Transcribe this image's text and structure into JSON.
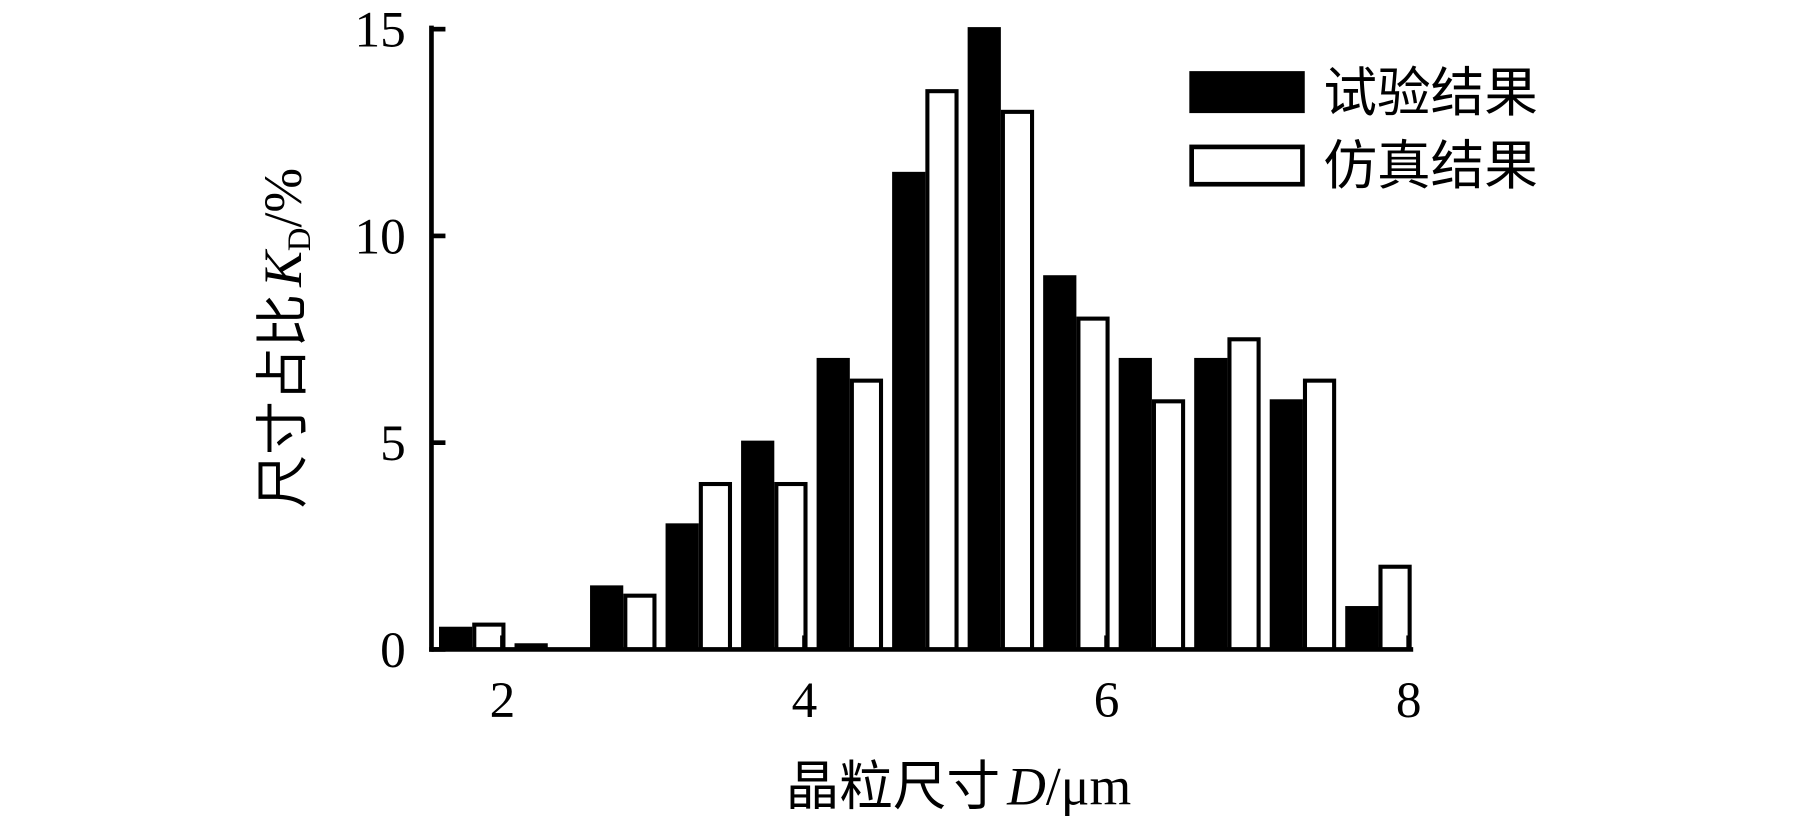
{
  "chart_data": {
    "type": "bar",
    "x": [
      1.8,
      2.3,
      2.8,
      3.3,
      3.8,
      4.3,
      4.8,
      5.3,
      5.8,
      6.3,
      6.8,
      7.3,
      7.8
    ],
    "series": [
      {
        "name": "试验结果",
        "color": "#000000",
        "values": [
          0.5,
          0.1,
          1.5,
          3,
          5,
          7,
          11.5,
          15,
          9,
          7,
          7,
          6,
          1
        ]
      },
      {
        "name": "仿真结果",
        "color": "#ffffff",
        "values": [
          0.6,
          0,
          1.3,
          4,
          4,
          6.5,
          13.5,
          13,
          8,
          6,
          7.5,
          6.5,
          2
        ]
      }
    ],
    "xlabel": {
      "text": "晶粒尺寸",
      "var": "D",
      "unit": "/μm"
    },
    "ylabel": {
      "text": "尺寸占比",
      "var": "K",
      "sub": "D",
      "unit": "/%"
    },
    "xlim": [
      1.53,
      8.03
    ],
    "xticks": [
      2,
      4,
      6,
      8
    ],
    "ylim": [
      0,
      15
    ],
    "yticks": [
      0,
      5,
      10,
      15
    ],
    "legend": "upper right"
  }
}
